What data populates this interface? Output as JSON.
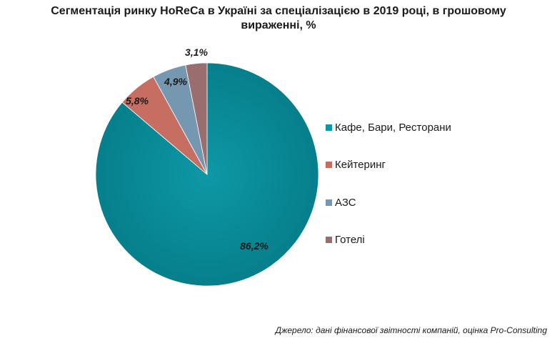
{
  "chart_data": {
    "type": "pie",
    "title_lines": [
      "Сегментація ринку HoReCa в Україні за спеціалізацією в 2019 році, в грошовому",
      "вираженні, %"
    ],
    "categories": [
      "Кафе, Бари, Ресторани",
      "Кейтеринг",
      "АЗС",
      "Готелі"
    ],
    "values": [
      86.2,
      5.8,
      4.9,
      3.1
    ],
    "data_labels": [
      "86,2%",
      "5,8%",
      "4,9%",
      "3,1%"
    ],
    "colors": [
      "#0e98a6",
      "#c76e62",
      "#7597b0",
      "#9a6e6f"
    ],
    "legend_position": "right"
  },
  "source": "Джерело: дані фінансової звітності компаній, оцінка Pro-Consulting"
}
